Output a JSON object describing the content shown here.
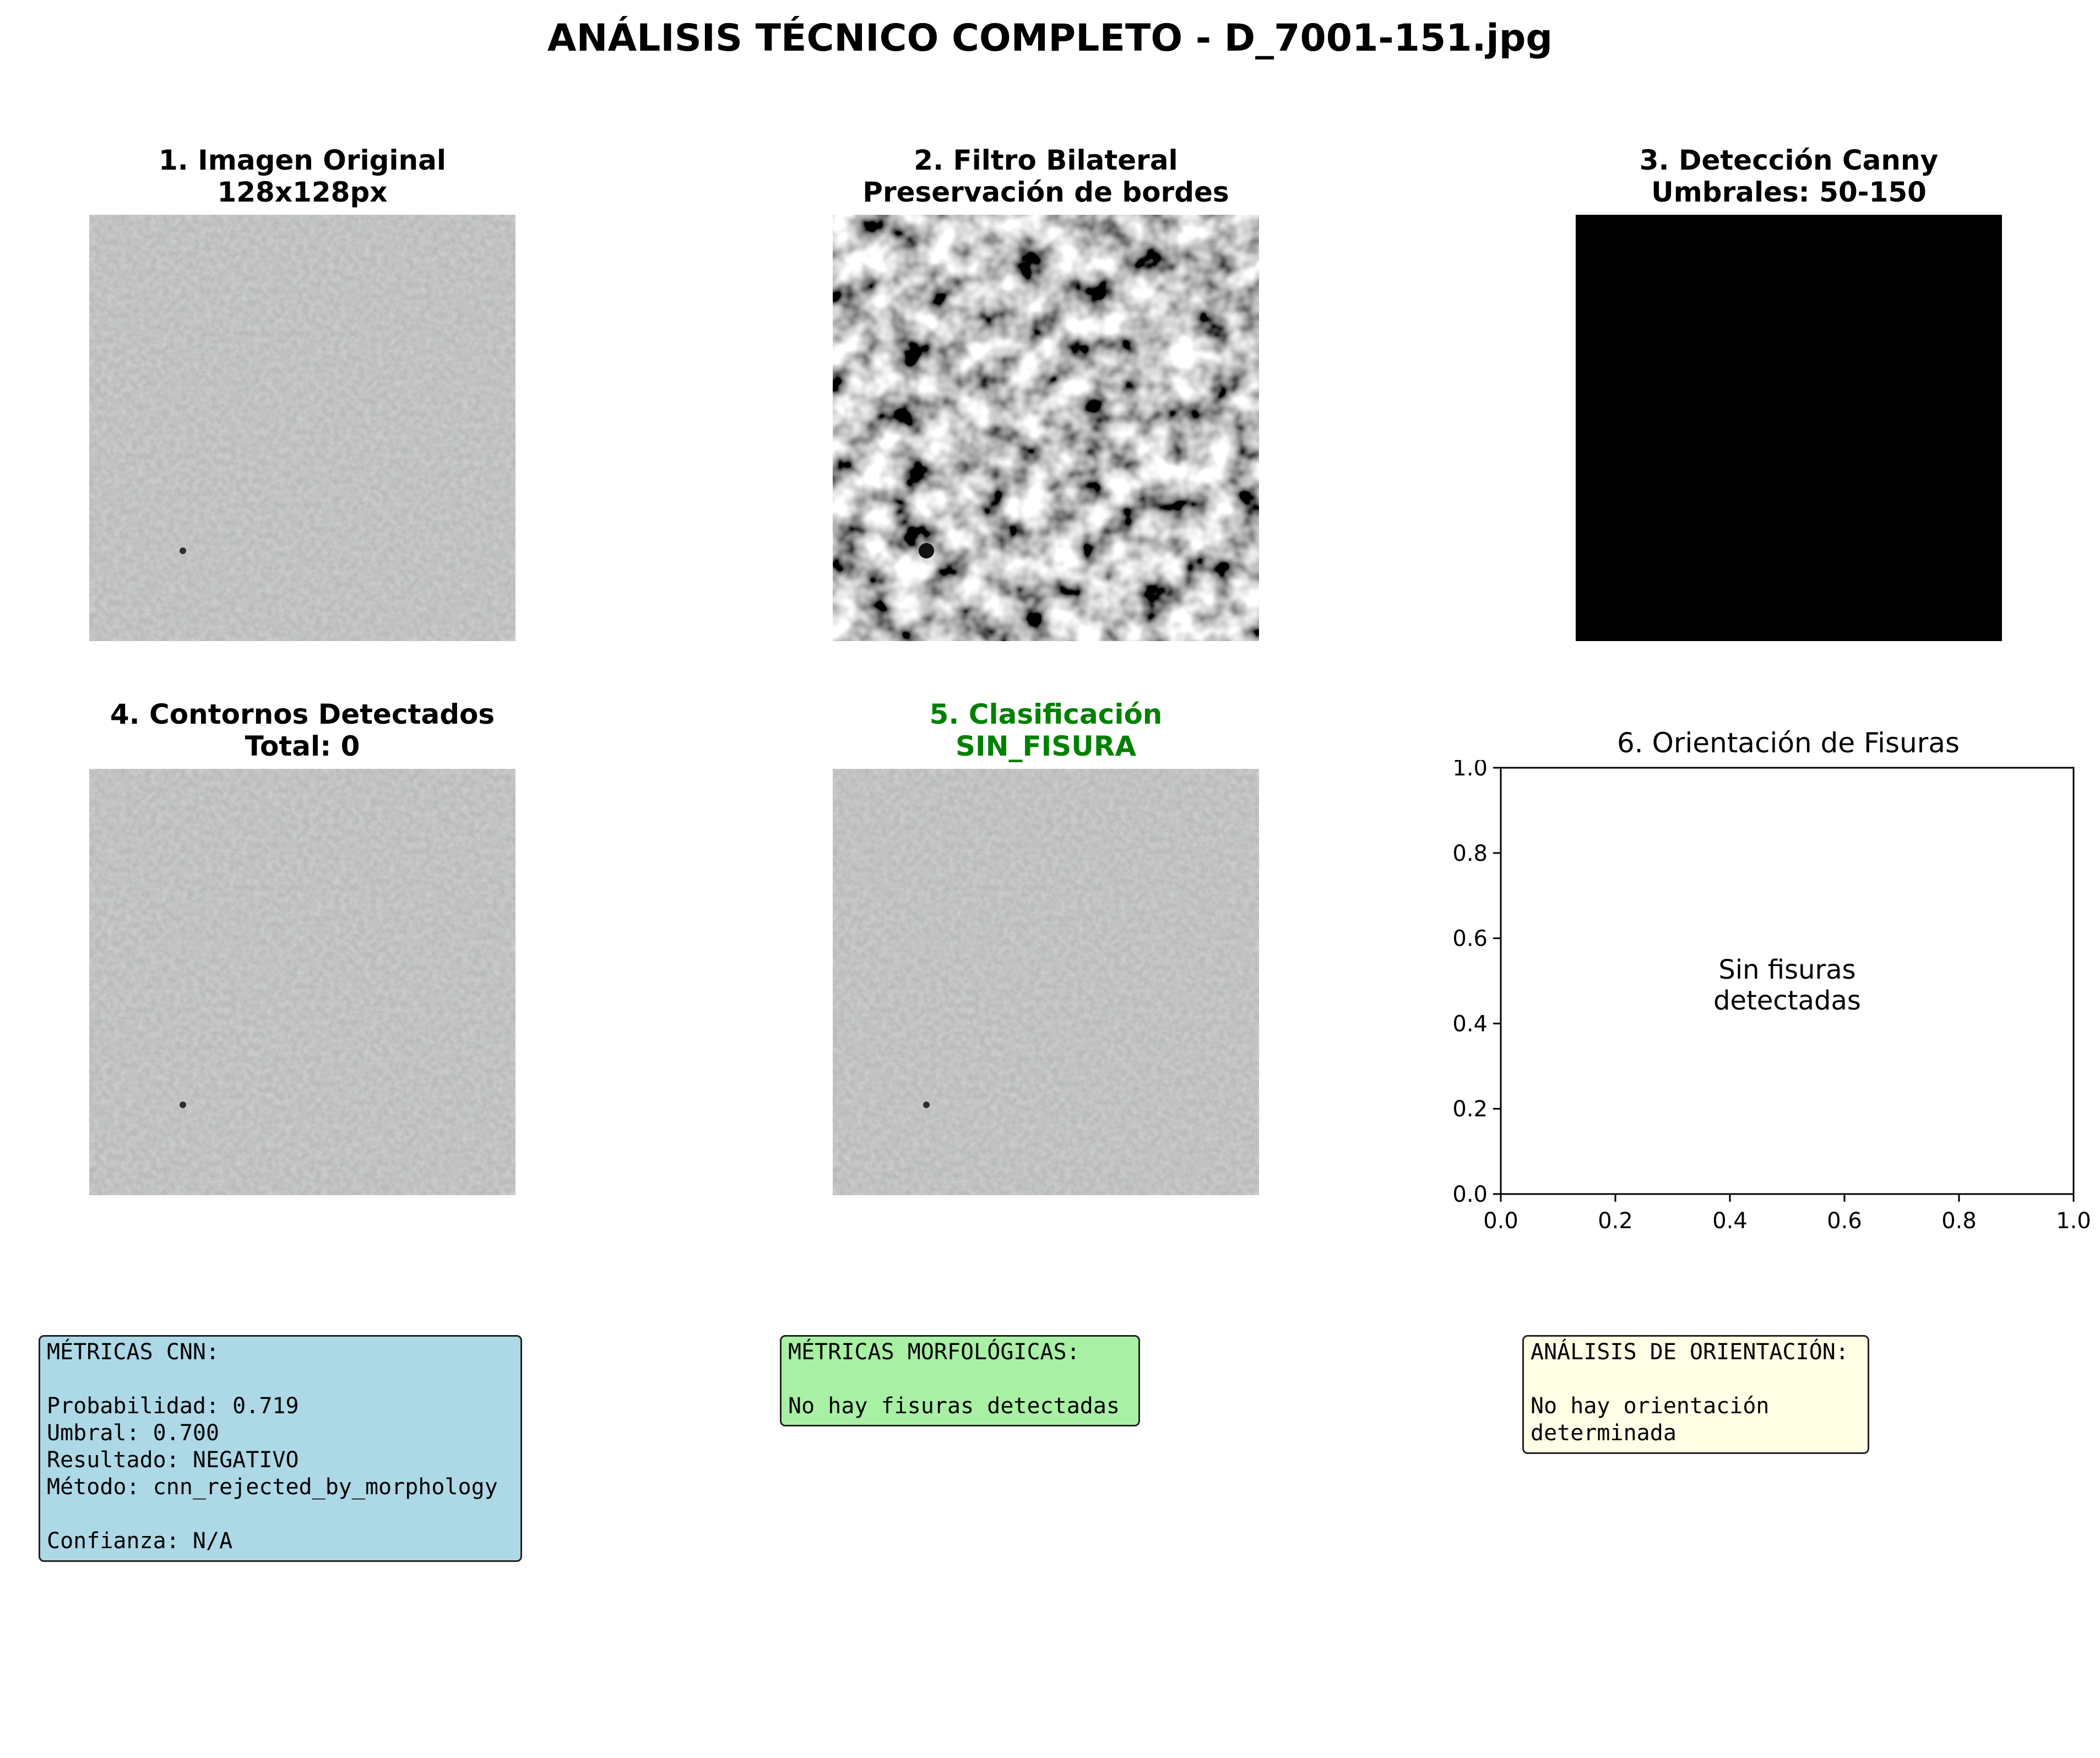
{
  "figure": {
    "title": "ANÁLISIS TÉCNICO COMPLETO - D_7001-151.jpg"
  },
  "panels": [
    {
      "title_line1": "1. Imagen Original",
      "title_line2": "128x128px",
      "image": "concrete-texture"
    },
    {
      "title_line1": "2. Filtro Bilateral",
      "title_line2": "Preservación de bordes",
      "image": "bilateral-filtered-texture"
    },
    {
      "title_line1": "3. Detección Canny",
      "title_line2": "Umbrales: 50-150",
      "image": "canny-edges-black"
    },
    {
      "title_line1": "4. Contornos Detectados",
      "title_line2": "Total: 0",
      "image": "concrete-texture"
    },
    {
      "title_line1": "5. Clasificación",
      "title_line2": "SIN_FISURA",
      "image": "concrete-texture",
      "title_color": "#008000"
    }
  ],
  "chart_data": {
    "type": "scatter",
    "title": "6. Orientación de Fisuras",
    "xlabel": "",
    "ylabel": "",
    "xlim": [
      0.0,
      1.0
    ],
    "ylim": [
      0.0,
      1.0
    ],
    "xticks": [
      "0.0",
      "0.2",
      "0.4",
      "0.6",
      "0.8",
      "1.0"
    ],
    "yticks": [
      "0.0",
      "0.2",
      "0.4",
      "0.6",
      "0.8",
      "1.0"
    ],
    "series": [],
    "annotation": {
      "line1": "Sin fisuras",
      "line2": "detectadas",
      "x": 0.5,
      "y": 0.5
    },
    "grid": false
  },
  "info_boxes": [
    {
      "text": "MÉTRICAS CNN:\n\nProbabilidad: 0.719\nUmbral: 0.700\nResultado: NEGATIVO\nMétodo: cnn_rejected_by_morphology\n\nConfianza: N/A",
      "color": "#add8e6"
    },
    {
      "text": "MÉTRICAS MORFOLÓGICAS:\n\nNo hay fisuras detectadas",
      "color": "#90ee90"
    },
    {
      "text": "ANÁLISIS DE ORIENTACIÓN:\n\nNo hay orientación\ndeterminada",
      "color": "#ffffe0"
    }
  ]
}
